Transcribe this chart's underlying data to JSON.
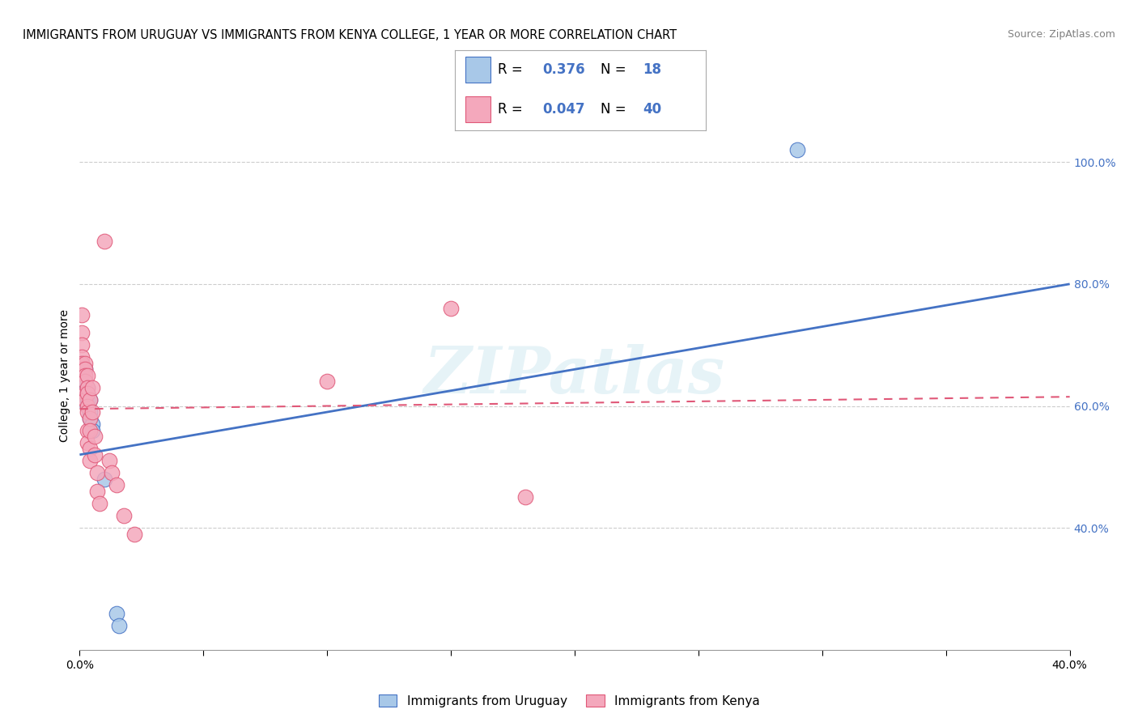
{
  "title": "IMMIGRANTS FROM URUGUAY VS IMMIGRANTS FROM KENYA COLLEGE, 1 YEAR OR MORE CORRELATION CHART",
  "source": "Source: ZipAtlas.com",
  "ylabel": "College, 1 year or more",
  "xlim": [
    0.0,
    0.4
  ],
  "ylim": [
    0.2,
    1.1
  ],
  "R_uruguay": 0.376,
  "N_uruguay": 18,
  "R_kenya": 0.047,
  "N_kenya": 40,
  "color_uruguay": "#a8c8e8",
  "color_kenya": "#f4a8bc",
  "line_color_uruguay": "#4472c4",
  "line_color_kenya": "#e05878",
  "watermark": "ZIPatlas",
  "uruguay_points": [
    [
      0.001,
      0.67
    ],
    [
      0.001,
      0.65
    ],
    [
      0.002,
      0.66
    ],
    [
      0.002,
      0.64
    ],
    [
      0.002,
      0.64
    ],
    [
      0.003,
      0.63
    ],
    [
      0.003,
      0.62
    ],
    [
      0.003,
      0.61
    ],
    [
      0.003,
      0.6
    ],
    [
      0.004,
      0.61
    ],
    [
      0.004,
      0.59
    ],
    [
      0.004,
      0.58
    ],
    [
      0.005,
      0.57
    ],
    [
      0.005,
      0.56
    ],
    [
      0.01,
      0.48
    ],
    [
      0.015,
      0.26
    ],
    [
      0.016,
      0.24
    ],
    [
      0.29,
      1.02
    ]
  ],
  "kenya_points": [
    [
      0.001,
      0.75
    ],
    [
      0.001,
      0.72
    ],
    [
      0.001,
      0.7
    ],
    [
      0.001,
      0.68
    ],
    [
      0.001,
      0.67
    ],
    [
      0.001,
      0.66
    ],
    [
      0.002,
      0.67
    ],
    [
      0.002,
      0.66
    ],
    [
      0.002,
      0.65
    ],
    [
      0.002,
      0.64
    ],
    [
      0.002,
      0.62
    ],
    [
      0.002,
      0.61
    ],
    [
      0.003,
      0.65
    ],
    [
      0.003,
      0.63
    ],
    [
      0.003,
      0.62
    ],
    [
      0.003,
      0.6
    ],
    [
      0.003,
      0.59
    ],
    [
      0.003,
      0.56
    ],
    [
      0.003,
      0.54
    ],
    [
      0.004,
      0.61
    ],
    [
      0.004,
      0.58
    ],
    [
      0.004,
      0.56
    ],
    [
      0.004,
      0.53
    ],
    [
      0.004,
      0.51
    ],
    [
      0.005,
      0.63
    ],
    [
      0.005,
      0.59
    ],
    [
      0.006,
      0.55
    ],
    [
      0.006,
      0.52
    ],
    [
      0.007,
      0.49
    ],
    [
      0.007,
      0.46
    ],
    [
      0.008,
      0.44
    ],
    [
      0.01,
      0.87
    ],
    [
      0.012,
      0.51
    ],
    [
      0.013,
      0.49
    ],
    [
      0.015,
      0.47
    ],
    [
      0.018,
      0.42
    ],
    [
      0.022,
      0.39
    ],
    [
      0.1,
      0.64
    ],
    [
      0.15,
      0.76
    ],
    [
      0.18,
      0.45
    ]
  ],
  "gridline_color": "#cccccc",
  "background_color": "#ffffff",
  "line_ury_x0": 0.0,
  "line_ury_y0": 0.52,
  "line_ury_x1": 0.4,
  "line_ury_y1": 0.8,
  "line_ken_x0": 0.0,
  "line_ken_y0": 0.595,
  "line_ken_x1": 0.4,
  "line_ken_y1": 0.615
}
